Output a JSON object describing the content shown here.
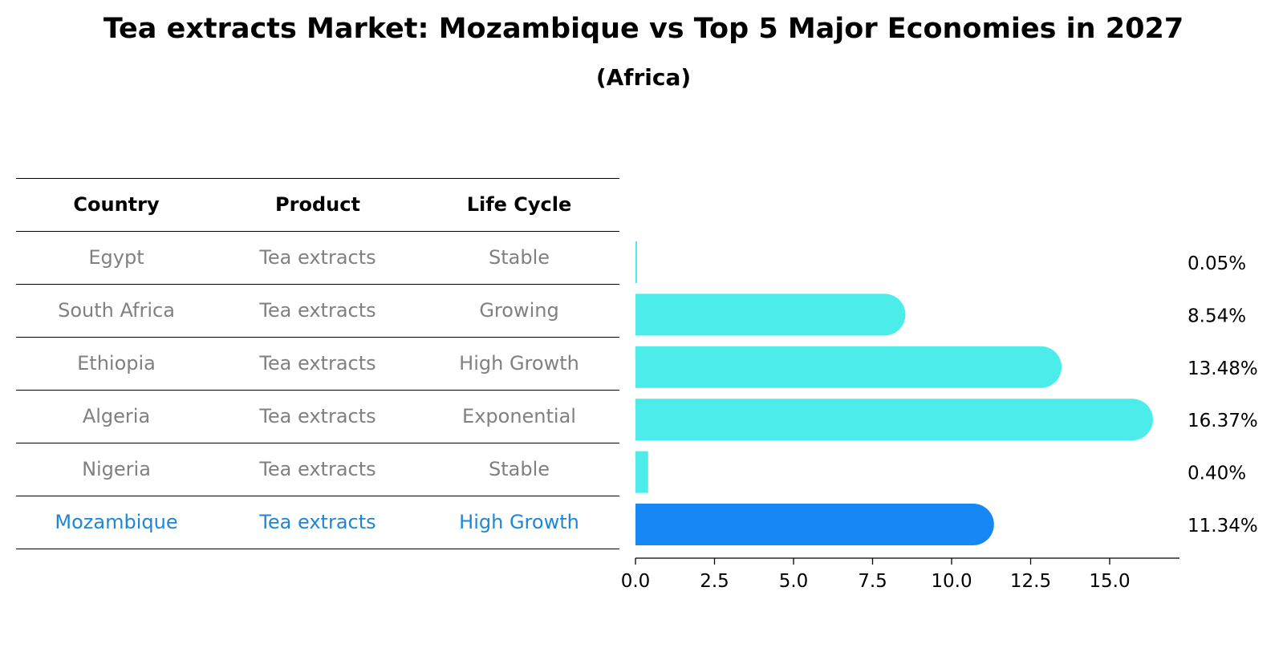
{
  "chart_data": {
    "type": "bar",
    "orientation": "horizontal",
    "title": "Tea extracts Market: Mozambique vs Top 5 Major Economies in 2027",
    "subtitle": "(Africa)",
    "table": {
      "columns": [
        "Country",
        "Product",
        "Life Cycle"
      ],
      "rows": [
        [
          "Egypt",
          "Tea extracts",
          "Stable"
        ],
        [
          "South Africa",
          "Tea extracts",
          "Growing"
        ],
        [
          "Ethiopia",
          "Tea extracts",
          "High Growth"
        ],
        [
          "Algeria",
          "Tea extracts",
          "Exponential"
        ],
        [
          "Nigeria",
          "Tea extracts",
          "Stable"
        ],
        [
          "Mozambique",
          "Tea extracts",
          "High Growth"
        ]
      ]
    },
    "categories": [
      "Egypt",
      "South Africa",
      "Ethiopia",
      "Algeria",
      "Nigeria",
      "Mozambique"
    ],
    "values": [
      0.05,
      8.54,
      13.48,
      16.37,
      0.4,
      11.34
    ],
    "value_labels": [
      "0.05%",
      "8.54%",
      "13.48%",
      "16.37%",
      "0.40%",
      "11.34%"
    ],
    "xlim": [
      0,
      17.2
    ],
    "xticks": [
      0.0,
      2.5,
      5.0,
      7.5,
      10.0,
      12.5,
      15.0
    ],
    "xtick_labels": [
      "0.0",
      "2.5",
      "5.0",
      "7.5",
      "10.0",
      "12.5",
      "15.0"
    ],
    "highlight": "Mozambique",
    "colors": {
      "bar": "#4cecea",
      "highlight": "#1787f5",
      "text": "#808080",
      "highlight_text": "#1f86d6"
    }
  }
}
